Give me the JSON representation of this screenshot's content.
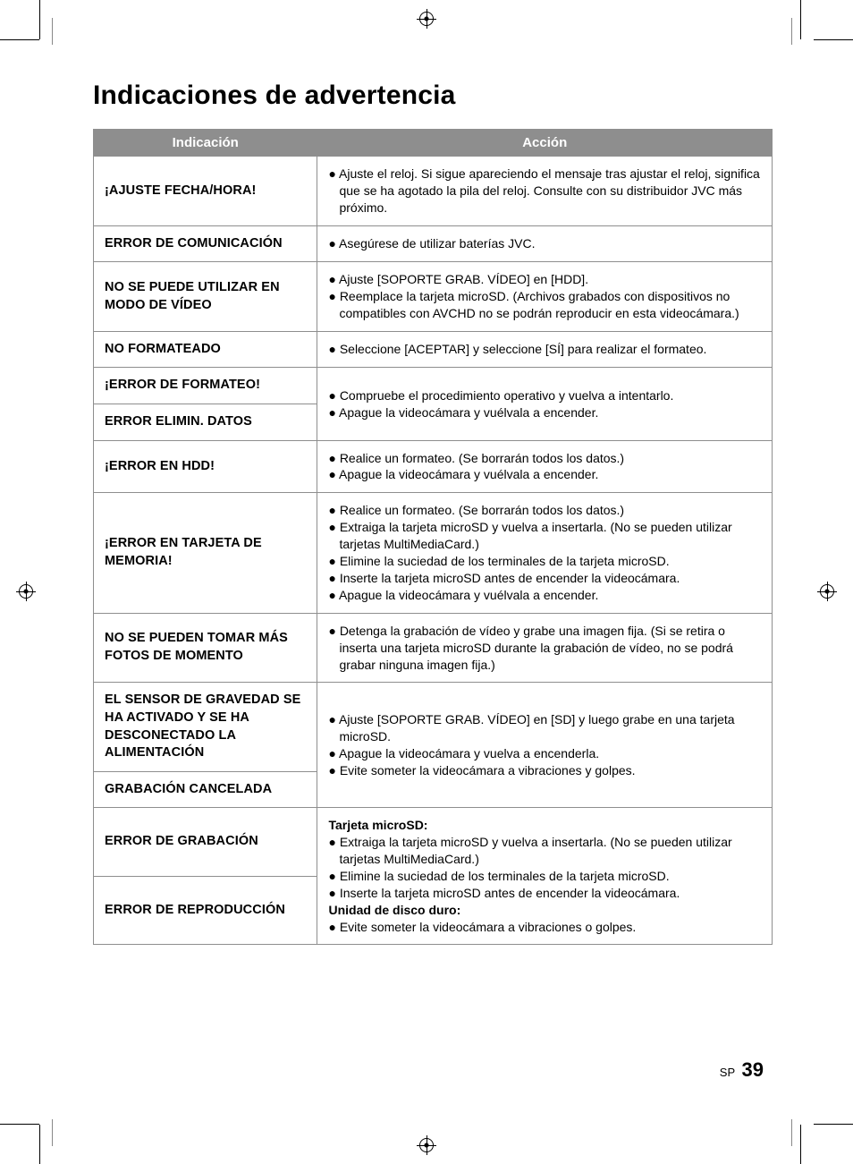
{
  "title": "Indicaciones de advertencia",
  "columns": {
    "indication": "Indicación",
    "action": "Acción"
  },
  "rows": [
    {
      "indication": "¡AJUSTE FECHA/HORA!",
      "actions": [
        "● Ajuste el reloj. Si sigue apareciendo el mensaje tras ajustar el reloj, significa que se ha agotado la pila del reloj. Consulte con su distribuidor JVC más próximo."
      ]
    },
    {
      "indication": "ERROR DE COMUNICACIÓN",
      "actions": [
        "● Asegúrese de utilizar baterías JVC."
      ]
    },
    {
      "indication": "NO SE PUEDE UTILIZAR EN MODO DE VÍDEO",
      "actions": [
        "● Ajuste [SOPORTE GRAB. VÍDEO] en [HDD].",
        "● Reemplace la tarjeta microSD. (Archivos grabados con dispositivos no compatibles con AVCHD no se podrán reproducir en esta videocámara.)"
      ]
    },
    {
      "indication": "NO FORMATEADO",
      "actions": [
        "● Seleccione [ACEPTAR] y seleccione [SÍ] para realizar el formateo."
      ]
    },
    {
      "group": true,
      "indications": [
        "¡ERROR DE FORMATEO!",
        "ERROR ELIMIN. DATOS"
      ],
      "actions": [
        "● Compruebe el procedimiento operativo y vuelva a intentarlo.",
        "● Apague la videocámara y vuélvala a encender."
      ]
    },
    {
      "indication": "¡ERROR EN HDD!",
      "actions": [
        "● Realice un formateo. (Se borrarán todos los datos.)",
        "● Apague la videocámara y vuélvala a encender."
      ]
    },
    {
      "indication": "¡ERROR EN TARJETA DE MEMORIA!",
      "actions": [
        "● Realice un formateo. (Se borrarán todos los datos.)",
        "● Extraiga la tarjeta microSD y vuelva a insertarla. (No se pueden utilizar tarjetas MultiMediaCard.)",
        "● Elimine la suciedad de los terminales de la tarjeta microSD.",
        "● Inserte la tarjeta microSD antes de encender la videocámara.",
        "● Apague la videocámara y vuélvala a encender."
      ]
    },
    {
      "indication": "NO SE PUEDEN TOMAR MÁS FOTOS DE MOMENTO",
      "actions": [
        "● Detenga la grabación de vídeo y grabe una imagen fija. (Si se retira o inserta una tarjeta microSD durante la grabación de vídeo, no se podrá grabar ninguna imagen fija.)"
      ]
    },
    {
      "group": true,
      "indications": [
        "EL SENSOR DE GRAVEDAD SE HA ACTIVADO Y SE HA DESCONECTADO LA ALIMENTACIÓN",
        "GRABACIÓN CANCELADA"
      ],
      "actions": [
        "● Ajuste [SOPORTE GRAB. VÍDEO] en [SD] y luego grabe en una tarjeta microSD.",
        "● Apague la videocámara y vuelva a encenderla.",
        "● Evite someter la videocámara a vibraciones y golpes."
      ]
    },
    {
      "group": true,
      "indications": [
        "ERROR DE GRABACIÓN",
        "ERROR DE REPRODUCCIÓN"
      ],
      "actions_labeled": [
        {
          "label": "Tarjeta microSD:",
          "items": [
            "● Extraiga la tarjeta microSD y vuelva a insertarla. (No se pueden utilizar tarjetas MultiMediaCard.)",
            "● Elimine la suciedad de los terminales de la tarjeta microSD.",
            "● Inserte la tarjeta microSD antes de encender la videocámara."
          ]
        },
        {
          "label": "Unidad de disco duro:",
          "items": [
            "● Evite someter la videocámara a vibraciones o golpes."
          ]
        }
      ]
    }
  ],
  "footer": {
    "prefix": "SP",
    "page": "39"
  }
}
